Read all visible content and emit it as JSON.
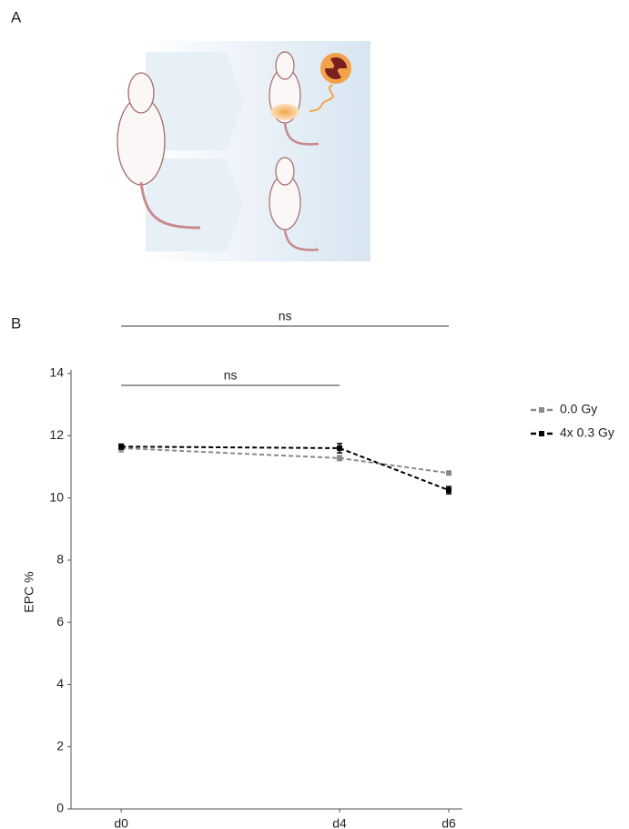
{
  "panel_labels": [
    "A",
    "B"
  ],
  "chart_data": {
    "type": "line",
    "y_label": "EPC %",
    "x": [
      0,
      4,
      6
    ],
    "xlim": [
      -0.92,
      6.25
    ],
    "xticks": [
      {
        "value": 0,
        "label": "d0"
      },
      {
        "value": 4,
        "label": "d4"
      },
      {
        "value": 6,
        "label": "d6"
      }
    ],
    "ylim": [
      0,
      14
    ],
    "yticks": [
      0,
      2,
      4,
      6,
      8,
      10,
      12,
      14
    ],
    "legend": "right",
    "series": [
      {
        "name": "0.0 Gy",
        "color": "#8a8a8a",
        "values": [
          11.6,
          11.28,
          10.8
        ],
        "errors": [
          0.12,
          0.08,
          0.05
        ]
      },
      {
        "name": "4x 0.3 Gy",
        "color": "#000000",
        "values": [
          11.65,
          11.6,
          10.25
        ],
        "errors": [
          0.08,
          0.15,
          0.12
        ]
      }
    ],
    "annotations": [
      {
        "text": "ns",
        "start": "d0",
        "end": "d6"
      },
      {
        "text": "ns",
        "start": "d0",
        "end": "d4"
      }
    ]
  }
}
